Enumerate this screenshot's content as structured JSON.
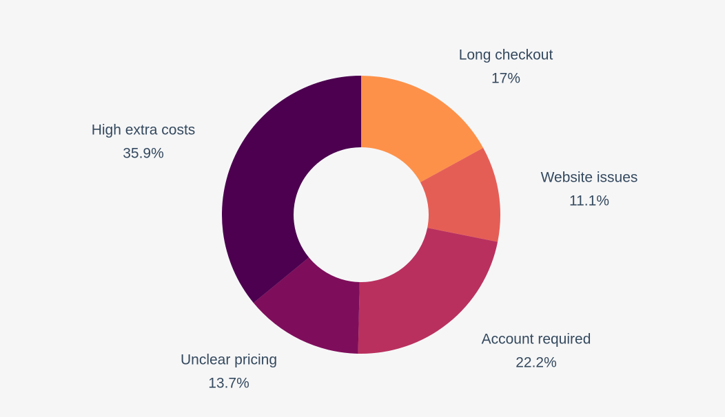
{
  "chart_data": {
    "type": "pie",
    "variant": "donut",
    "title": "",
    "slices": [
      {
        "label": "Long checkout",
        "value": 17.0,
        "display": "17%",
        "color": "#fd9149"
      },
      {
        "label": "Website issues",
        "value": 11.1,
        "display": "11.1%",
        "color": "#e55e56"
      },
      {
        "label": "Account required",
        "value": 22.2,
        "display": "22.2%",
        "color": "#b9305e"
      },
      {
        "label": "Unclear pricing",
        "value": 13.7,
        "display": "13.7%",
        "color": "#7e0e5b"
      },
      {
        "label": "High extra costs",
        "value": 35.9,
        "display": "35.9%",
        "color": "#4c004f"
      }
    ],
    "start": "12 o'clock",
    "direction": "clockwise",
    "legend": "none",
    "label_color": "#34495e",
    "background": "#f6f6f7"
  }
}
